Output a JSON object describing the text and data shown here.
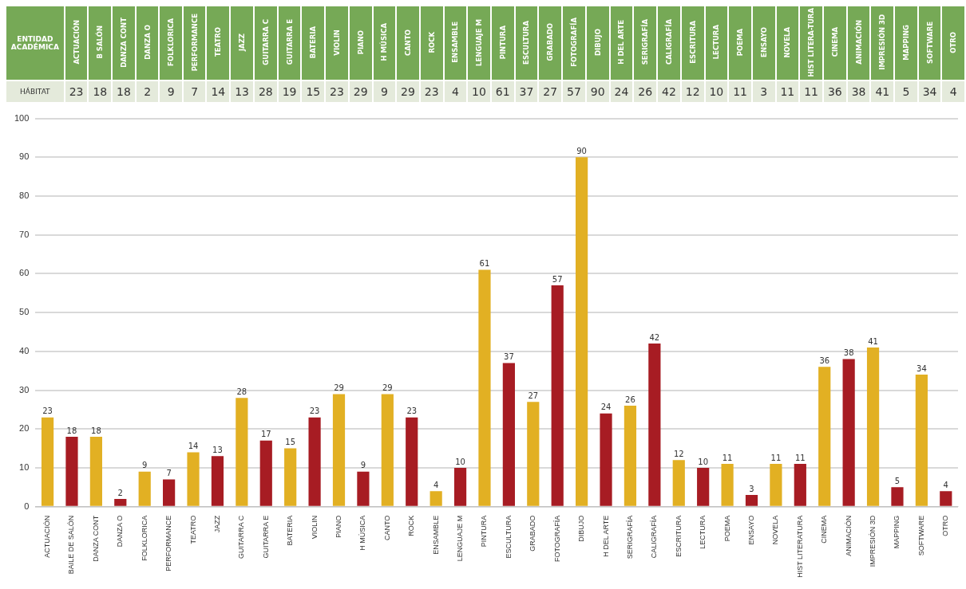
{
  "chart_data": [
    {
      "type": "other",
      "xlabel": "ENTIDAD ACADÉMICA",
      "data_labels": true,
      "categories": [
        "ACTUACIÓN",
        "B SALÓN",
        "DANZA CONT",
        "DANZA O",
        "FOLKLORICA",
        "PERFORMANCE",
        "TEATRO",
        "JAZZ",
        "GUITARRA C",
        "GUITARRA E",
        "BATERIA",
        "VIOLIN",
        "PIANO",
        "H MÚSICA",
        "CANTO",
        "ROCK",
        "ENSAMBLE",
        "LENGUAJE M",
        "PINTURA",
        "ESCULTURA",
        "GRABADO",
        "FOTOGRAFÍA",
        "DIBUJO",
        "H DEL ARTE",
        "SERIGRAFÍA",
        "CALIGRAFÍA",
        "ESCRITURA",
        "LECTURA",
        "POEMA",
        "ENSAYO",
        "NOVELA",
        "HIST LITERA-TURA",
        "CINEMA",
        "ANIMACIÓN",
        "IMPRESIÓN 3D",
        "MAPPING",
        "SOFTWARE",
        "OTRO"
      ],
      "series": [
        {
          "name": "HÁBITAT",
          "values": [
            23,
            18,
            18,
            2,
            9,
            7,
            14,
            13,
            28,
            19,
            15,
            23,
            29,
            9,
            29,
            23,
            4,
            10,
            61,
            37,
            27,
            57,
            90,
            24,
            26,
            42,
            12,
            10,
            11,
            3,
            11,
            11,
            36,
            38,
            41,
            5,
            34,
            4
          ]
        }
      ]
    },
    {
      "type": "bar",
      "data_labels": true,
      "grid": "y",
      "legend": false,
      "ylim": [
        0,
        100
      ],
      "yticks": [
        0,
        10,
        20,
        30,
        40,
        50,
        60,
        70,
        80,
        90,
        100
      ],
      "categories": [
        "ACTUACIÓN",
        "BAILE DE SALÓN",
        "DANZA CONT",
        "DANZA O",
        "FOLKLORICA",
        "PERFORMANCE",
        "TEATRO",
        "JAZZ",
        "GUITARRA C",
        "GUITARRA E",
        "BATERIA",
        "VIOLIN",
        "PIANO",
        "H MÚSICA",
        "CANTO",
        "ROCK",
        "ENSAMBLE",
        "LENGUAJE M",
        "PINTURA",
        "ESCULTURA",
        "GRABADO",
        "FOTOGRAFÍA",
        "DIBUJO",
        "H DEL ARTE",
        "SERIGRAFÍA",
        "CALIGRAFÍA",
        "ESCRITURA",
        "LECTURA",
        "POEMA",
        "ENSAYO",
        "NOVELA",
        "HIST LITERATURA",
        "CINEMA",
        "ANIMACIÓN",
        "IMPRESIÓN 3D",
        "MAPPING",
        "SOFTWARE",
        "OTRO"
      ],
      "values": [
        23,
        18,
        18,
        2,
        9,
        7,
        14,
        13,
        28,
        17,
        15,
        23,
        29,
        9,
        29,
        23,
        4,
        10,
        61,
        37,
        27,
        57,
        90,
        24,
        26,
        42,
        12,
        10,
        11,
        3,
        11,
        11,
        36,
        38,
        41,
        5,
        34,
        4
      ],
      "colors": [
        "#e2b023",
        "#a71c23",
        "#e2b023",
        "#a71c23",
        "#e2b023",
        "#a71c23",
        "#e2b023",
        "#a71c23",
        "#e2b023",
        "#a71c23",
        "#e2b023",
        "#a71c23",
        "#e2b023",
        "#a71c23",
        "#e2b023",
        "#a71c23",
        "#e2b023",
        "#a71c23",
        "#e2b023",
        "#a71c23",
        "#e2b023",
        "#a71c23",
        "#e2b023",
        "#a71c23",
        "#e2b023",
        "#a71c23",
        "#e2b023",
        "#a71c23",
        "#e2b023",
        "#a71c23",
        "#e2b023",
        "#a71c23",
        "#e2b023",
        "#a71c23",
        "#e2b023",
        "#a71c23",
        "#e2b023",
        "#a71c23"
      ]
    }
  ]
}
